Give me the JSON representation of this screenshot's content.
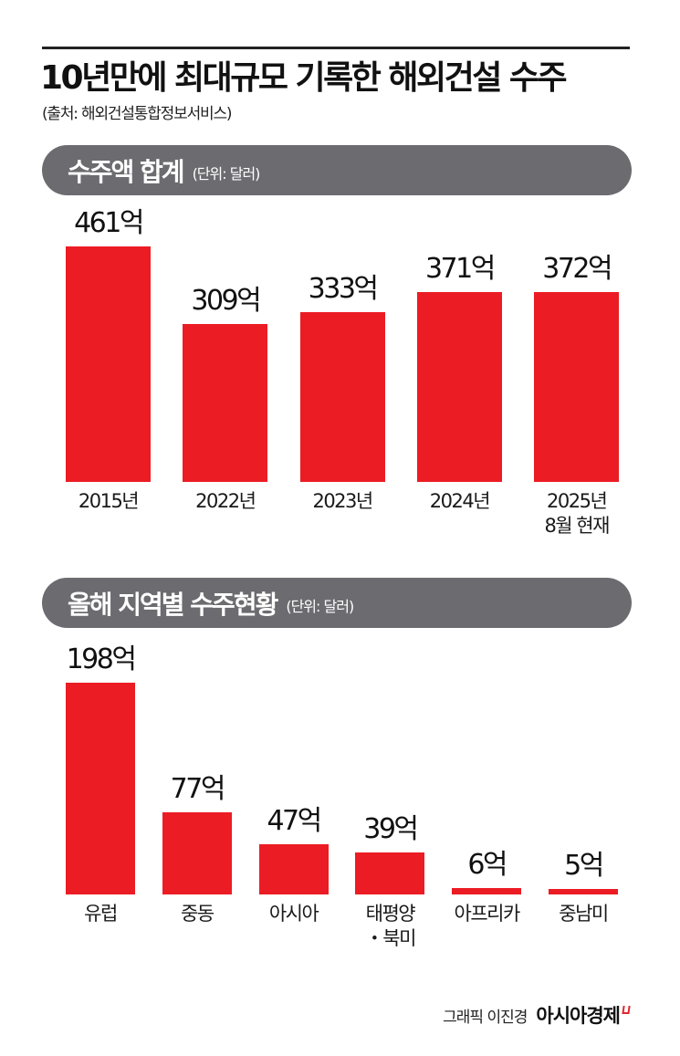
{
  "header": {
    "title": "10년만에 최대규모 기록한 해외건설 수주",
    "source": "(출처: 해외건설통합정보서비스)"
  },
  "section1": {
    "title": "수주액 합계",
    "unit": "(단위: 달러)"
  },
  "section2": {
    "title": "올해 지역별 수주현황",
    "unit": "(단위: 달러)"
  },
  "footer": {
    "credit": "그래픽 이진경",
    "brand": "아시아경제"
  },
  "colors": {
    "bar": "#ec1c24",
    "pill": "#6b6b70",
    "text": "#111111"
  },
  "chart_data": [
    {
      "type": "bar",
      "title": "수주액 합계",
      "subtitle": "(단위: 달러)",
      "categories": [
        "2015년",
        "2022년",
        "2023년",
        "2024년",
        "2025년\n8월 현재"
      ],
      "values": [
        461,
        309,
        333,
        371,
        372
      ],
      "labels": [
        "461억",
        "309억",
        "333억",
        "371억",
        "372억"
      ],
      "unit": "억 달러",
      "xlabel": "",
      "ylabel": "",
      "grid": false,
      "legend": null
    },
    {
      "type": "bar",
      "title": "올해 지역별 수주현황",
      "subtitle": "(단위: 달러)",
      "categories": [
        "유럽",
        "중동",
        "아시아",
        "태평양\n・북미",
        "아프리카",
        "중남미"
      ],
      "values": [
        198,
        77,
        47,
        39,
        6,
        5
      ],
      "labels": [
        "198억",
        "77억",
        "47억",
        "39억",
        "6억",
        "5억"
      ],
      "unit": "억 달러",
      "xlabel": "",
      "ylabel": "",
      "grid": false,
      "legend": null
    }
  ]
}
